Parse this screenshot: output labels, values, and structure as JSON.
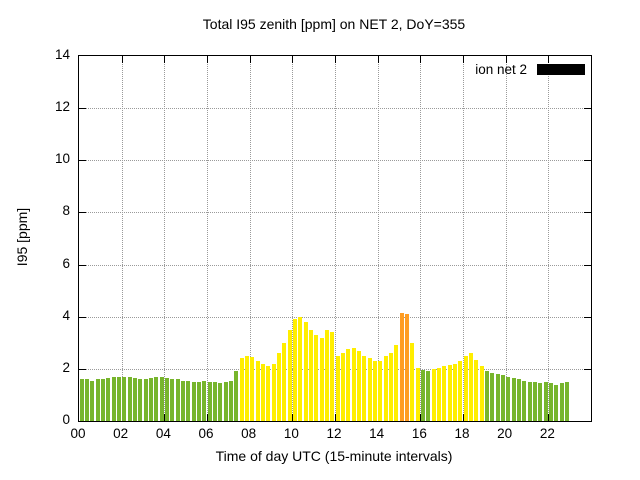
{
  "legend": {
    "label": "ion net 2",
    "swatch_color": "#000000"
  },
  "chart_data": {
    "type": "bar",
    "title": "Total I95 zenith [ppm] on NET 2, DoY=355",
    "xlabel": "Time of day UTC (15-minute intervals)",
    "ylabel": "I95 [ppm]",
    "ylim": [
      0,
      14
    ],
    "xlim_hours": [
      0,
      24
    ],
    "y_ticks": [
      0,
      2,
      4,
      6,
      8,
      10,
      12,
      14
    ],
    "x_ticks": [
      "00",
      "02",
      "04",
      "06",
      "08",
      "10",
      "12",
      "14",
      "16",
      "18",
      "20",
      "22"
    ],
    "grid": "dotted",
    "legend_position": "top-right",
    "start_hour": 0,
    "interval_minutes": 15,
    "values": [
      1.6,
      1.6,
      1.55,
      1.6,
      1.6,
      1.65,
      1.7,
      1.7,
      1.7,
      1.7,
      1.65,
      1.6,
      1.6,
      1.65,
      1.7,
      1.7,
      1.65,
      1.6,
      1.6,
      1.55,
      1.55,
      1.5,
      1.5,
      1.55,
      1.5,
      1.5,
      1.45,
      1.5,
      1.55,
      1.9,
      2.4,
      2.5,
      2.45,
      2.3,
      2.2,
      2.1,
      2.2,
      2.6,
      3.0,
      3.5,
      3.9,
      4.0,
      3.8,
      3.5,
      3.3,
      3.2,
      3.5,
      3.4,
      2.5,
      2.6,
      2.75,
      2.8,
      2.7,
      2.5,
      2.4,
      2.3,
      2.3,
      2.5,
      2.6,
      2.9,
      4.15,
      4.1,
      3.0,
      2.05,
      1.95,
      1.9,
      2.0,
      2.05,
      2.1,
      2.15,
      2.2,
      2.3,
      2.5,
      2.6,
      2.35,
      2.1,
      1.9,
      1.85,
      1.8,
      1.75,
      1.7,
      1.65,
      1.6,
      1.55,
      1.5,
      1.5,
      1.45,
      1.5,
      1.45,
      1.4,
      1.45,
      1.5
    ],
    "colors": {
      "green": "#77b52c",
      "yellow": "#ffee00",
      "orange": "#ff9d23"
    },
    "thresholds": {
      "green_below": 2.0,
      "orange_above": 4.05
    }
  }
}
